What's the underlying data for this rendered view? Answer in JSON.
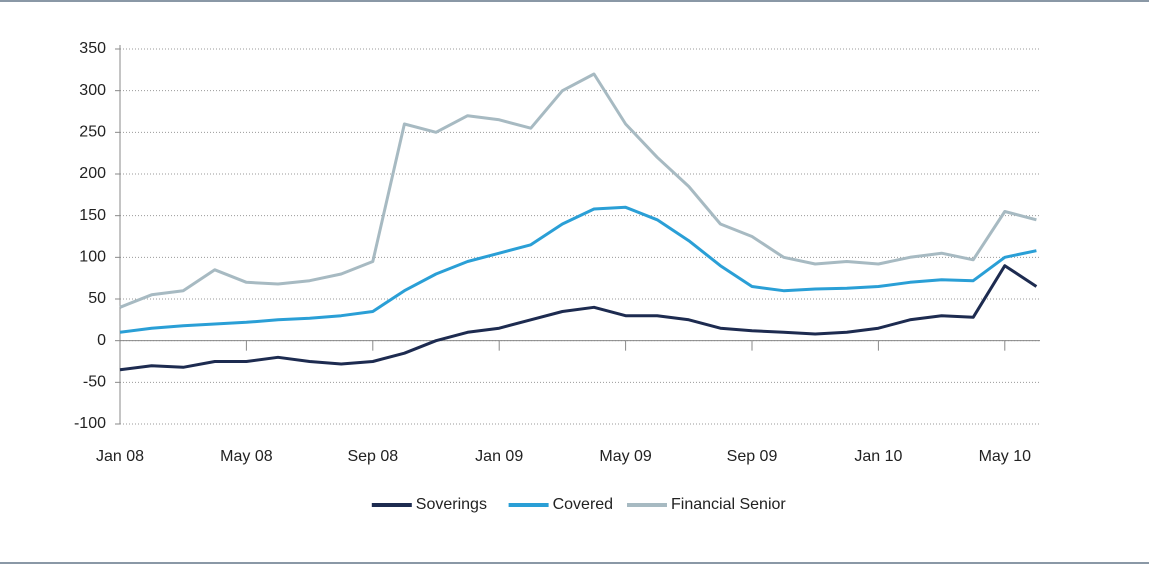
{
  "chart_data": {
    "type": "line",
    "categories": [
      "Jan 08",
      null,
      null,
      null,
      "May 08",
      null,
      null,
      null,
      "Sep 08",
      null,
      null,
      null,
      "Jan 09",
      null,
      null,
      null,
      "May 09",
      null,
      null,
      null,
      "Sep 09",
      null,
      null,
      null,
      "Jan 10",
      null,
      null,
      null,
      "May 10",
      null
    ],
    "series": [
      {
        "name": "Soverings",
        "color": "#1d2b50",
        "values": [
          -35,
          -30,
          -32,
          -25,
          -25,
          -20,
          -25,
          -28,
          -25,
          -15,
          0,
          10,
          15,
          25,
          35,
          40,
          30,
          30,
          25,
          15,
          12,
          10,
          8,
          10,
          15,
          25,
          30,
          28,
          90,
          65
        ]
      },
      {
        "name": "Covered",
        "color": "#2a9fd6",
        "values": [
          10,
          15,
          18,
          20,
          22,
          25,
          27,
          30,
          35,
          60,
          80,
          95,
          105,
          115,
          140,
          158,
          160,
          145,
          120,
          90,
          65,
          60,
          62,
          63,
          65,
          70,
          73,
          72,
          100,
          108
        ]
      },
      {
        "name": "Financial Senior",
        "color": "#a7bac2",
        "values": [
          40,
          55,
          60,
          85,
          70,
          68,
          72,
          80,
          95,
          260,
          250,
          270,
          265,
          255,
          300,
          320,
          260,
          220,
          185,
          140,
          125,
          100,
          92,
          95,
          92,
          100,
          105,
          97,
          155,
          145
        ]
      }
    ],
    "ylim": [
      -100,
      350
    ],
    "yticks": [
      -100,
      -50,
      0,
      50,
      100,
      150,
      200,
      250,
      300,
      350
    ],
    "grid": true,
    "legend": "bottom"
  }
}
